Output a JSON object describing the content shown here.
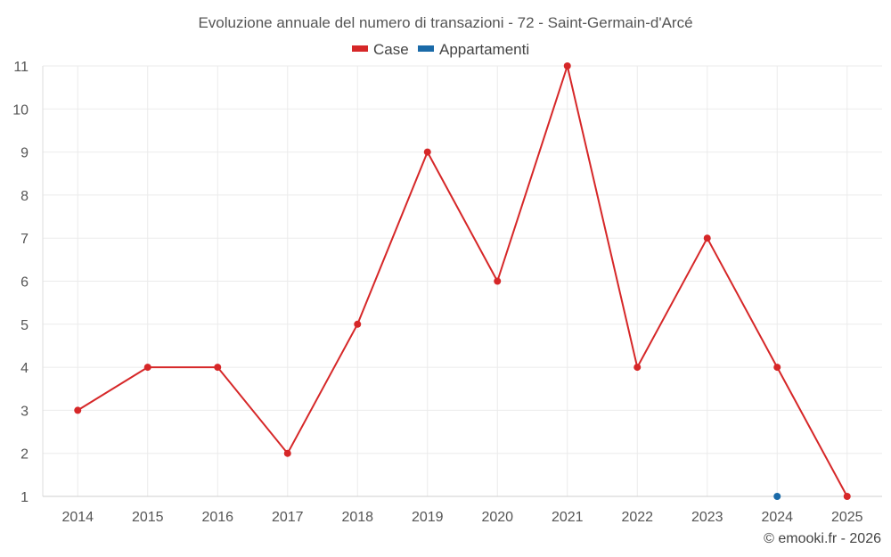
{
  "chart_data": {
    "type": "line",
    "title": "Evoluzione annuale del numero di transazioni - 72 - Saint-Germain-d'Arcé",
    "x": [
      "2014",
      "2015",
      "2016",
      "2017",
      "2018",
      "2019",
      "2020",
      "2021",
      "2022",
      "2023",
      "2024",
      "2025"
    ],
    "ylim": [
      1,
      11
    ],
    "yticks": [
      "1",
      "2",
      "3",
      "4",
      "5",
      "6",
      "7",
      "8",
      "9",
      "10",
      "11"
    ],
    "grid": true,
    "legend_position": "top-center",
    "series": [
      {
        "name": "Case",
        "color": "#d62728",
        "values": [
          3,
          4,
          4,
          2,
          5,
          9,
          6,
          11,
          4,
          7,
          4,
          1
        ]
      },
      {
        "name": "Appartamenti",
        "color": "#1a6aa8",
        "values": [
          null,
          null,
          null,
          null,
          null,
          null,
          null,
          null,
          null,
          null,
          1,
          null
        ]
      }
    ],
    "credit": "© emooki.fr - 2026"
  }
}
